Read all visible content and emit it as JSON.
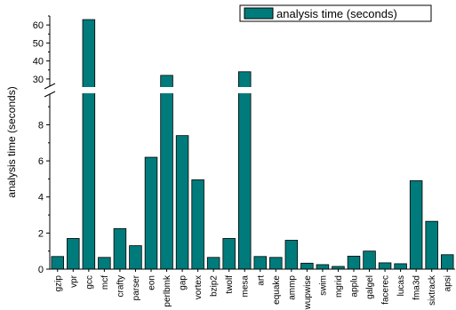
{
  "chart_data": {
    "type": "bar",
    "ylabel": "analysis time (seconds)",
    "xlabel": "",
    "legend": {
      "label": "analysis time (seconds)",
      "placement": "top-right"
    },
    "bar_color": "#007B7B",
    "bar_stroke": "#000000",
    "y_axis_break": {
      "lower_range": [
        0,
        9.5
      ],
      "upper_range": [
        26,
        65
      ]
    },
    "lower_ticks": [
      0,
      2,
      4,
      6,
      8
    ],
    "upper_ticks": [
      30,
      40,
      50,
      60
    ],
    "categories": [
      "gzip",
      "vpr",
      "gcc",
      "mcf",
      "crafty",
      "parser",
      "eon",
      "perlbmk",
      "gap",
      "vortex",
      "bzip2",
      "twolf",
      "mesa",
      "art",
      "equake",
      "ammp",
      "wupwise",
      "swim",
      "mgrid",
      "applu",
      "galgel",
      "facerec",
      "lucas",
      "fma3d",
      "sixtrack",
      "apsi"
    ],
    "category_labels": [
      "gzip",
      "vpr",
      "gcc",
      "mcf",
      "crafty",
      "parser",
      "eon",
      "perlbmk",
      "gap",
      "vortex",
      "bzip2",
      "twolf",
      "mesa",
      "art",
      "equake",
      "ammp",
      "wupwise",
      "swim",
      "mgrid",
      "applu",
      "galgel",
      "facerec",
      "lucas",
      "fma3d",
      "sixtrack",
      "apsi"
    ],
    "values": [
      0.7,
      1.7,
      63,
      0.65,
      2.25,
      1.3,
      6.2,
      32,
      7.4,
      4.95,
      0.65,
      1.7,
      34,
      0.7,
      0.65,
      1.6,
      0.33,
      0.25,
      0.15,
      0.72,
      1.0,
      0.35,
      0.3,
      4.9,
      2.65,
      0.8
    ]
  }
}
